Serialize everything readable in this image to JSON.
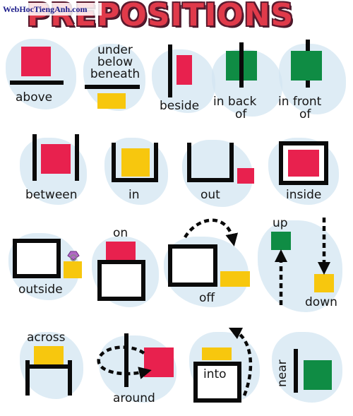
{
  "watermark": "WebHocTiengAnh.com",
  "title": "PREPOSITIONS",
  "labels": {
    "above": "above",
    "under_lines": [
      "under",
      "below",
      "beneath"
    ],
    "beside": "beside",
    "in_back_of_lines": [
      "in  back",
      "of"
    ],
    "in_front_of_lines": [
      "in  front",
      "of"
    ],
    "between": "between",
    "in": "in",
    "out": "out",
    "inside": "inside",
    "outside": "outside",
    "on": "on",
    "off": "off",
    "up": "up",
    "down": "down",
    "across": "across",
    "around": "around",
    "into": "into",
    "near": "near"
  },
  "colors": {
    "red": "#e8214e",
    "yellow": "#f7c70e",
    "green": "#0f8c44",
    "black": "#0a0a0a",
    "title_red": "#e03a4a",
    "splash_blue": "#d3e6f1"
  }
}
